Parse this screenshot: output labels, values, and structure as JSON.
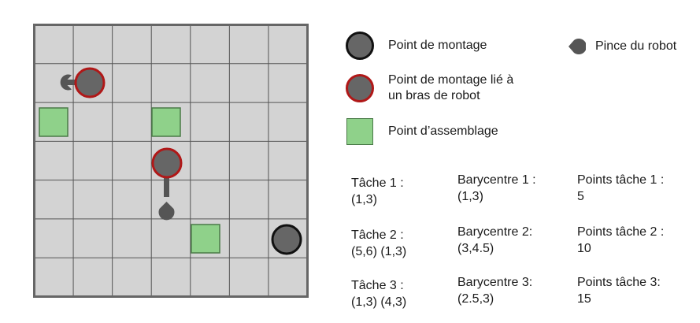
{
  "colors": {
    "grid_bg": "#d3d3d3",
    "grid_line": "#555555",
    "grid_border": "#666666",
    "mount_fill": "#666666",
    "mount_border_plain": "#111111",
    "mount_border_linked": "#b01818",
    "assembly_fill": "#8fd18a",
    "gripper": "#555555"
  },
  "grid": {
    "cols": 7,
    "rows": 7
  },
  "legend": {
    "mount_point": "Point de montage",
    "linked_mount_line1": "Point de montage lié à",
    "linked_mount_line2": "un bras de robot",
    "assembly_point": "Point d’assemblage",
    "gripper": "Pince du robot"
  },
  "tasks": [
    {
      "task_label": "Tâche 1 :",
      "task_points": "(1,3)",
      "bary_label": "Barycentre 1 :",
      "bary_value": "(1,3)",
      "score_label": "Points tâche 1 :",
      "score_value": "5"
    },
    {
      "task_label": "Tâche 2 :",
      "task_points": "(5,6) (1,3)",
      "bary_label": "Barycentre 2:",
      "bary_value": "(3,4.5)",
      "score_label": "Points tâche 2 :",
      "score_value": "10"
    },
    {
      "task_label": "Tâche 3 :",
      "task_points": "(1,3) (4,3)",
      "bary_label": "Barycentre 3:",
      "bary_value": "(2.5,3)",
      "score_label": "Points tâche 3:",
      "score_value": "15"
    }
  ]
}
